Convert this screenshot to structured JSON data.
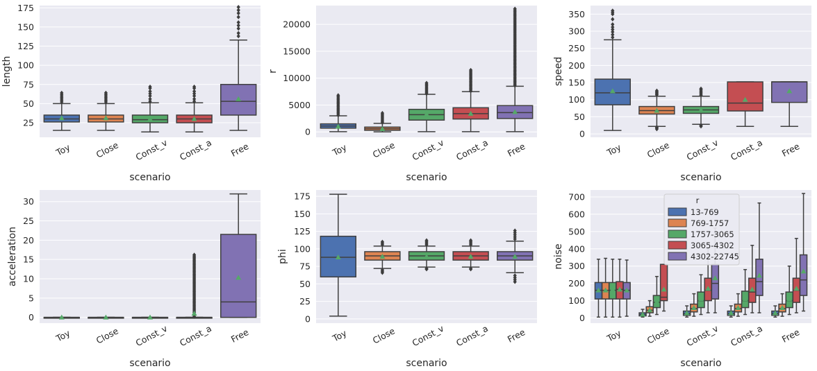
{
  "chart_data": [
    {
      "type": "box",
      "panel": "top-left",
      "xlabel": "scenario",
      "ylabel": "length",
      "categories": [
        "Toy",
        "Close",
        "Const_v",
        "Const_a",
        "Free"
      ],
      "yticks": [
        25,
        50,
        75,
        100,
        125,
        150,
        175
      ],
      "ylim": [
        6,
        178
      ],
      "boxes": [
        {
          "whislo": 15,
          "q1": 26,
          "med": 30,
          "q3": 35,
          "whishi": 50,
          "mean": 31,
          "fliers": [
            52,
            54,
            56,
            58,
            60,
            62,
            64
          ]
        },
        {
          "whislo": 15,
          "q1": 26,
          "med": 30,
          "q3": 35,
          "whishi": 50,
          "mean": 31,
          "fliers": [
            52,
            54,
            56,
            58,
            60,
            62,
            64
          ]
        },
        {
          "whislo": 13,
          "q1": 25,
          "med": 29,
          "q3": 35,
          "whishi": 51,
          "mean": 30,
          "fliers": [
            53,
            56,
            60,
            63,
            66,
            70,
            72
          ]
        },
        {
          "whislo": 13,
          "q1": 25,
          "med": 30,
          "q3": 35,
          "whishi": 51,
          "mean": 30,
          "fliers": [
            53,
            56,
            60,
            63,
            66,
            70,
            72
          ]
        },
        {
          "whislo": 15,
          "q1": 35,
          "med": 53,
          "q3": 75,
          "whishi": 133,
          "mean": 56,
          "fliers": [
            138,
            142,
            148,
            152,
            156,
            163,
            168,
            172,
            176
          ]
        }
      ]
    },
    {
      "type": "box",
      "panel": "top-middle",
      "xlabel": "scenario",
      "ylabel": "r",
      "categories": [
        "Toy",
        "Close",
        "Const_v",
        "Const_a",
        "Free"
      ],
      "yticks": [
        0,
        5000,
        10000,
        15000,
        20000
      ],
      "ylim": [
        -1000,
        23500
      ],
      "boxes": [
        {
          "whislo": 50,
          "q1": 700,
          "med": 1100,
          "q3": 1500,
          "whishi": 3000,
          "mean": 1000,
          "flierRange": [
            3100,
            6800
          ]
        },
        {
          "whislo": 20,
          "q1": 300,
          "med": 600,
          "q3": 900,
          "whishi": 1600,
          "mean": 550,
          "flierRange": [
            1700,
            3500
          ]
        },
        {
          "whislo": 50,
          "q1": 2200,
          "med": 3200,
          "q3": 4200,
          "whishi": 7000,
          "mean": 3300,
          "flierRange": [
            7100,
            9100
          ]
        },
        {
          "whislo": 50,
          "q1": 2400,
          "med": 3400,
          "q3": 4500,
          "whishi": 7500,
          "mean": 3400,
          "flierRange": [
            7600,
            11500
          ]
        },
        {
          "whislo": 50,
          "q1": 2500,
          "med": 3600,
          "q3": 4900,
          "whishi": 8500,
          "mean": 3700,
          "flierRange": [
            8600,
            22900
          ]
        }
      ]
    },
    {
      "type": "box",
      "panel": "top-right",
      "xlabel": "scenario",
      "ylabel": "speed",
      "categories": [
        "Toy",
        "Close",
        "Const_v",
        "Const_a",
        "Free"
      ],
      "yticks": [
        0,
        50,
        100,
        150,
        200,
        250,
        300,
        350
      ],
      "ylim": [
        -10,
        375
      ],
      "boxes": [
        {
          "whislo": 10,
          "q1": 85,
          "med": 120,
          "q3": 160,
          "whishi": 275,
          "mean": 125,
          "fliers": [
            282,
            290,
            298,
            305,
            312,
            320,
            335,
            350,
            355,
            360
          ]
        },
        {
          "whislo": 22,
          "q1": 58,
          "med": 68,
          "q3": 80,
          "whishi": 110,
          "mean": 68,
          "fliers": [
            14,
            17,
            20,
            114,
            117,
            120,
            123,
            126
          ]
        },
        {
          "whislo": 28,
          "q1": 60,
          "med": 70,
          "q3": 80,
          "whishi": 110,
          "mean": 70,
          "fliers": [
            22,
            25,
            113,
            117,
            121,
            125,
            129,
            132
          ]
        },
        {
          "whislo": 22,
          "q1": 67,
          "med": 90,
          "q3": 152,
          "whishi": 152,
          "mean": 100,
          "fliers": []
        },
        {
          "whislo": 22,
          "q1": 92,
          "med": 152,
          "q3": 152,
          "whishi": 152,
          "mean": 125,
          "fliers": []
        }
      ]
    },
    {
      "type": "box",
      "panel": "bottom-left",
      "xlabel": "scenario",
      "ylabel": "acceleration",
      "categories": [
        "Toy",
        "Close",
        "Const_v",
        "Const_a",
        "Free"
      ],
      "yticks": [
        0,
        5,
        10,
        15,
        20,
        25,
        30
      ],
      "ylim": [
        -1.5,
        33
      ],
      "boxes": [
        {
          "whislo": 0,
          "q1": 0,
          "med": 0,
          "q3": 0,
          "whishi": 0,
          "mean": 0,
          "fliers": []
        },
        {
          "whislo": 0,
          "q1": 0,
          "med": 0,
          "q3": 0,
          "whishi": 0,
          "mean": 0,
          "fliers": []
        },
        {
          "whislo": 0,
          "q1": 0,
          "med": 0,
          "q3": 0,
          "whishi": 0,
          "mean": 0,
          "fliers": []
        },
        {
          "whislo": 0,
          "q1": 0,
          "med": 0,
          "q3": 0,
          "whishi": 0,
          "mean": 1,
          "flierRange": [
            0.2,
            16.2
          ]
        },
        {
          "whislo": 0,
          "q1": 0,
          "med": 4,
          "q3": 21.5,
          "whishi": 32,
          "mean": 10.3,
          "fliers": []
        }
      ]
    },
    {
      "type": "box",
      "panel": "bottom-middle",
      "xlabel": "scenario",
      "ylabel": "phi",
      "categories": [
        "Toy",
        "Close",
        "Const_v",
        "Const_a",
        "Free"
      ],
      "yticks": [
        0,
        25,
        50,
        75,
        100,
        125,
        150,
        175
      ],
      "ylim": [
        -6,
        184
      ],
      "boxes": [
        {
          "whislo": 4,
          "q1": 60,
          "med": 88,
          "q3": 118,
          "whishi": 178,
          "mean": 88,
          "fliers": []
        },
        {
          "whislo": 72,
          "q1": 84,
          "med": 90,
          "q3": 96,
          "whishi": 104,
          "mean": 89,
          "fliers": [
            66,
            68,
            70,
            106,
            108,
            110
          ]
        },
        {
          "whislo": 74,
          "q1": 84,
          "med": 90,
          "q3": 96,
          "whishi": 104,
          "mean": 89,
          "fliers": [
            71,
            72,
            106,
            108,
            110,
            112
          ]
        },
        {
          "whislo": 74,
          "q1": 84,
          "med": 90,
          "q3": 96,
          "whishi": 104,
          "mean": 89,
          "fliers": [
            71,
            72,
            106,
            108,
            110,
            112
          ]
        },
        {
          "whislo": 66,
          "q1": 84,
          "med": 90,
          "q3": 96,
          "whishi": 111,
          "mean": 89,
          "fliers": [
            53,
            56,
            59,
            62,
            114,
            117,
            120,
            123,
            126
          ]
        }
      ]
    },
    {
      "type": "grouped-box",
      "panel": "bottom-right",
      "xlabel": "scenario",
      "ylabel": "noise",
      "categories": [
        "Toy",
        "Close",
        "Const_v",
        "Const_a",
        "Free"
      ],
      "yticks": [
        0,
        100,
        200,
        300,
        400,
        500,
        600,
        700
      ],
      "ylim": [
        -30,
        740
      ],
      "legend": {
        "title": "r",
        "location": "upper-center",
        "entries": [
          "13-769",
          "769-1757",
          "1757-3065",
          "3065-4302",
          "4302-22745"
        ]
      },
      "groups": [
        [
          {
            "whislo": 5,
            "q1": 110,
            "med": 160,
            "q3": 205,
            "whishi": 340,
            "mean": 160
          },
          {
            "whislo": 5,
            "q1": 110,
            "med": 160,
            "q3": 205,
            "whishi": 345,
            "mean": 160
          },
          {
            "whislo": 5,
            "q1": 110,
            "med": 160,
            "q3": 205,
            "whishi": 340,
            "mean": 165
          },
          {
            "whislo": 5,
            "q1": 110,
            "med": 165,
            "q3": 210,
            "whishi": 340,
            "mean": 165
          },
          {
            "whislo": 10,
            "q1": 110,
            "med": 160,
            "q3": 205,
            "whishi": 335,
            "mean": 160
          }
        ],
        [
          {
            "whislo": 5,
            "q1": 12,
            "med": 20,
            "q3": 30,
            "whishi": 50,
            "mean": 20
          },
          {
            "whislo": 10,
            "q1": 30,
            "med": 45,
            "q3": 65,
            "whishi": 100,
            "mean": 45
          },
          {
            "whislo": 20,
            "q1": 60,
            "med": 90,
            "q3": 130,
            "whishi": 240,
            "mean": 95
          },
          {
            "whislo": 40,
            "q1": 100,
            "med": 120,
            "q3": 310,
            "whishi": 310,
            "mean": 165
          },
          {
            "whislo": 0,
            "q1": 0,
            "med": 0,
            "q3": 0,
            "whishi": 0,
            "mean": 0,
            "hidden": true
          }
        ],
        [
          {
            "whislo": 5,
            "q1": 15,
            "med": 25,
            "q3": 40,
            "whishi": 70,
            "mean": 28
          },
          {
            "whislo": 10,
            "q1": 35,
            "med": 55,
            "q3": 80,
            "whishi": 140,
            "mean": 58
          },
          {
            "whislo": 20,
            "q1": 60,
            "med": 100,
            "q3": 150,
            "whishi": 250,
            "mean": 110
          },
          {
            "whislo": 30,
            "q1": 100,
            "med": 160,
            "q3": 230,
            "whishi": 400,
            "mean": 170
          },
          {
            "whislo": 30,
            "q1": 110,
            "med": 200,
            "q3": 310,
            "whishi": 520,
            "mean": 230
          }
        ],
        [
          {
            "whislo": 5,
            "q1": 15,
            "med": 25,
            "q3": 40,
            "whishi": 70,
            "mean": 28
          },
          {
            "whislo": 10,
            "q1": 35,
            "med": 55,
            "q3": 80,
            "whishi": 140,
            "mean": 58
          },
          {
            "whislo": 20,
            "q1": 60,
            "med": 100,
            "q3": 155,
            "whishi": 280,
            "mean": 110
          },
          {
            "whislo": 30,
            "q1": 90,
            "med": 150,
            "q3": 230,
            "whishi": 420,
            "mean": 165
          },
          {
            "whislo": 30,
            "q1": 130,
            "med": 210,
            "q3": 340,
            "whishi": 665,
            "mean": 245
          }
        ],
        [
          {
            "whislo": 5,
            "q1": 15,
            "med": 25,
            "q3": 40,
            "whishi": 70,
            "mean": 28
          },
          {
            "whislo": 10,
            "q1": 35,
            "med": 55,
            "q3": 80,
            "whishi": 140,
            "mean": 58
          },
          {
            "whislo": 20,
            "q1": 60,
            "med": 100,
            "q3": 150,
            "whishi": 300,
            "mean": 110
          },
          {
            "whislo": 30,
            "q1": 90,
            "med": 160,
            "q3": 230,
            "whishi": 460,
            "mean": 170
          },
          {
            "whislo": 40,
            "q1": 130,
            "med": 220,
            "q3": 365,
            "whishi": 720,
            "mean": 270
          }
        ]
      ]
    }
  ],
  "colors": {
    "series": [
      "#4C72B0",
      "#DD8452",
      "#55A868",
      "#C44E52",
      "#8172B3"
    ],
    "panel_bg": "#EAEAF2",
    "grid": "#FFFFFF",
    "edge": "#3F3F3F",
    "mean_marker": "#55A868"
  }
}
